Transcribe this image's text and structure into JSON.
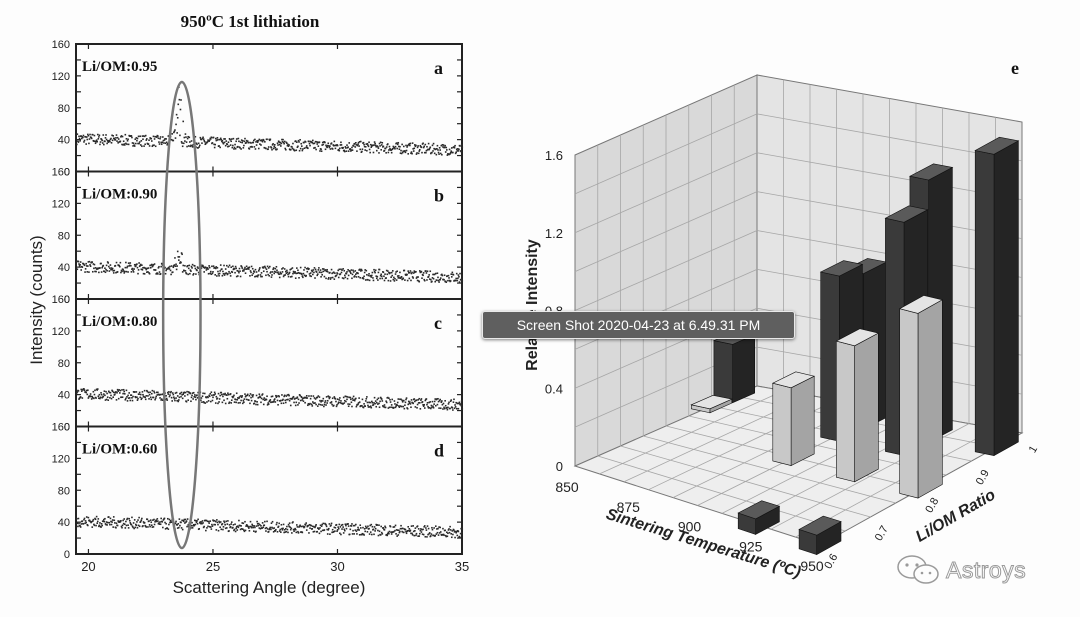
{
  "figure_title": "950ºC 1st lithiation",
  "tooltip_text": "Screen Shot 2020-04-23 at 6.49.31 PM",
  "watermark_text": "Astroys",
  "colors": {
    "dark_bar": "#3a3a3a",
    "light_bar": "#c8c8c8",
    "ellipse": "#777777",
    "points": "#2a2a2a"
  },
  "chart_data": [
    {
      "type": "scatter",
      "panels": [
        {
          "letter": "a",
          "label": "Li/OM:0.95",
          "peak": 70
        },
        {
          "letter": "b",
          "label": "Li/OM:0.90",
          "peak": 25
        },
        {
          "letter": "c",
          "label": "Li/OM:0.80",
          "peak": 0
        },
        {
          "letter": "d",
          "label": "Li/OM:0.60",
          "peak": 0
        }
      ],
      "xlabel": "Scattering Angle (degree)",
      "ylabel": "Intensity (counts)",
      "xlim": [
        19.5,
        35
      ],
      "ylim": [
        0,
        160
      ],
      "xticks": [
        20,
        25,
        30,
        35
      ],
      "yticks": [
        0,
        20,
        40,
        60,
        80,
        100,
        120,
        140,
        160
      ],
      "ytick_labels": [
        "0",
        "",
        "40",
        "",
        "80",
        "",
        "120",
        "",
        "160"
      ],
      "baseline_start": 42,
      "baseline_end": 28,
      "peak_position": 23.6,
      "highlight_range": [
        23.0,
        24.5
      ]
    },
    {
      "type": "bar",
      "panel_letter": "e",
      "xlabel": "Sintering Temperature (ºC)",
      "ylabel": "Relative Intensity",
      "zlabel": "Li/OM Ratio",
      "xticks": [
        850,
        875,
        900,
        925,
        950
      ],
      "yticks": [
        0,
        0.4,
        0.8,
        1.2,
        1.6
      ],
      "ytick_labels": [
        "0",
        "0.4",
        "0.8",
        "1.2",
        "1.6"
      ],
      "zticks": [
        0.6,
        0.7,
        0.8,
        0.9,
        1
      ],
      "bars": [
        {
          "temperature": 850,
          "ratio": 0.95,
          "value": 0.3,
          "tone": "dark"
        },
        {
          "temperature": 850,
          "ratio": 0.9,
          "value": 0.02,
          "tone": "light"
        },
        {
          "temperature": 900,
          "ratio": 0.95,
          "value": 0.8,
          "tone": "dark"
        },
        {
          "temperature": 900,
          "ratio": 0.9,
          "value": 0.85,
          "tone": "dark"
        },
        {
          "temperature": 900,
          "ratio": 0.8,
          "value": 0.4,
          "tone": "light"
        },
        {
          "temperature": 925,
          "ratio": 0.95,
          "value": 1.35,
          "tone": "dark"
        },
        {
          "temperature": 925,
          "ratio": 0.9,
          "value": 1.2,
          "tone": "dark"
        },
        {
          "temperature": 925,
          "ratio": 0.8,
          "value": 0.7,
          "tone": "light"
        },
        {
          "temperature": 925,
          "ratio": 0.6,
          "value": 0.08,
          "tone": "dark"
        },
        {
          "temperature": 950,
          "ratio": 0.95,
          "value": 1.55,
          "tone": "dark"
        },
        {
          "temperature": 950,
          "ratio": 0.8,
          "value": 0.95,
          "tone": "light"
        },
        {
          "temperature": 950,
          "ratio": 0.6,
          "value": 0.1,
          "tone": "dark"
        }
      ]
    }
  ]
}
